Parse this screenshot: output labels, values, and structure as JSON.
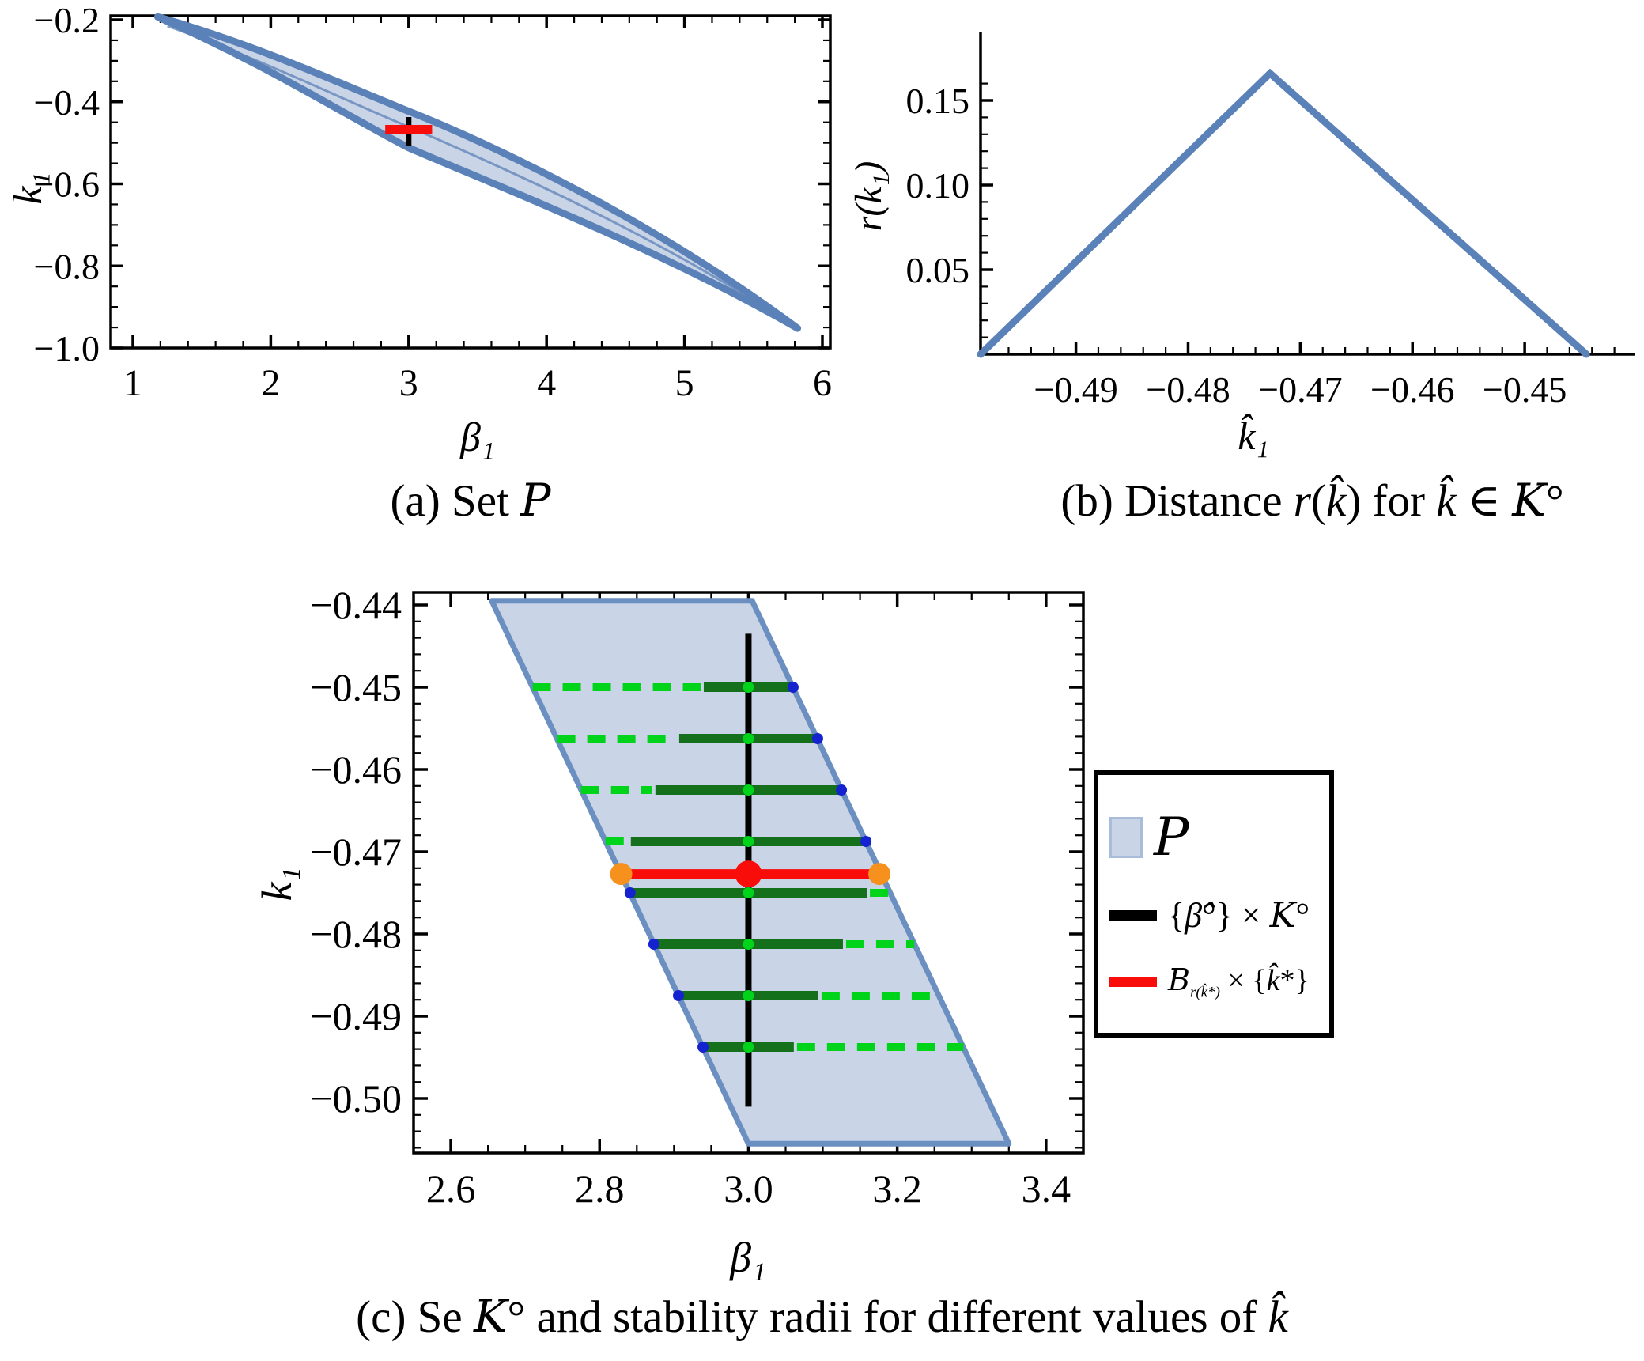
{
  "figure": {
    "captions": {
      "a": [
        {
          "t": "(a) Set ",
          "c": "rm"
        },
        {
          "t": "P",
          "c": "scr"
        }
      ],
      "b": [
        {
          "t": "(b) Distance ",
          "c": "rm"
        },
        {
          "t": "r",
          "c": "it"
        },
        {
          "t": "(",
          "c": "rm"
        },
        {
          "t": "k̂",
          "c": "it"
        },
        {
          "t": ") for ",
          "c": "rm"
        },
        {
          "t": "k̂",
          "c": "it"
        },
        {
          "t": " ∈ ",
          "c": "rm"
        },
        {
          "t": "K",
          "c": "scr"
        },
        {
          "t": "°",
          "c": "rm"
        }
      ],
      "c": [
        {
          "t": "(c) Se ",
          "c": "rm"
        },
        {
          "t": "K",
          "c": "scr"
        },
        {
          "t": "° and stability radii for different values of ",
          "c": "rm"
        },
        {
          "t": "k̂",
          "c": "it"
        }
      ]
    },
    "legend": {
      "items": [
        {
          "name": "set-P",
          "swatch": "area",
          "label": [
            {
              "t": "P",
              "c": "scr"
            }
          ]
        },
        {
          "name": "beta-hat-cross-K",
          "swatch": "black-line",
          "label": [
            {
              "t": "{",
              "c": "rm"
            },
            {
              "t": "β̂",
              "c": "it"
            },
            {
              "t": "°",
              "c": "rm"
            },
            {
              "t": "} × ",
              "c": "rm"
            },
            {
              "t": "K",
              "c": "scr"
            },
            {
              "t": "°",
              "c": "rm"
            }
          ]
        },
        {
          "name": "ball-cross-kstar",
          "swatch": "red-line",
          "label": [
            {
              "t": "B",
              "c": "scr"
            },
            {
              "t": "r(k̂*)",
              "c": "sub"
            },
            {
              "t": " × {",
              "c": "rm"
            },
            {
              "t": "k̂",
              "c": "it"
            },
            {
              "t": "*}",
              "c": "rm"
            }
          ]
        }
      ]
    },
    "colors": {
      "region_fill": "#c9d4e6",
      "region_stroke": "#5b82b8",
      "parallelogram_stroke": "#6b8fc0",
      "red": "#f90d0b",
      "orange": "#f6911e",
      "dark_green": "#14701a",
      "bright_green": "#00d41a",
      "blue_dot": "#1522cf",
      "black": "#000000"
    }
  },
  "chart_data": [
    {
      "id": "a",
      "type": "area",
      "title": "(a) Set P",
      "xlabel": "β₁",
      "ylabel": "k₁",
      "xlim": [
        0.85,
        6.05
      ],
      "ylim": [
        -1.0,
        -0.19
      ],
      "x_ticks": {
        "major": [
          1,
          2,
          3,
          4,
          5,
          6
        ],
        "labels": [
          "1",
          "2",
          "3",
          "4",
          "5",
          "6"
        ],
        "minor_step": 0.2
      },
      "y_ticks": {
        "major": [
          -0.2,
          -0.4,
          -0.6,
          -0.8,
          -1.0
        ],
        "labels": [
          "−0.2",
          "−0.4",
          "−0.6",
          "−0.8",
          "−1.0"
        ],
        "minor_step": 0.05
      },
      "region_P": {
        "upper": [
          [
            1.18,
            -0.193
          ],
          [
            1.9,
            -0.262
          ],
          [
            2.45,
            -0.348
          ],
          [
            3.0,
            -0.423
          ],
          [
            3.6,
            -0.503
          ],
          [
            4.75,
            -0.685
          ],
          [
            5.82,
            -0.952
          ]
        ],
        "lower": [
          [
            1.18,
            -0.193
          ],
          [
            2.0,
            -0.315
          ],
          [
            2.5,
            -0.425
          ],
          [
            3.0,
            -0.512
          ],
          [
            3.52,
            -0.588
          ],
          [
            4.8,
            -0.755
          ],
          [
            5.82,
            -0.952
          ]
        ],
        "inner_line": [
          [
            1.25,
            -0.215
          ],
          [
            2.0,
            -0.305
          ],
          [
            2.5,
            -0.392
          ],
          [
            3.05,
            -0.468
          ],
          [
            3.6,
            -0.548
          ],
          [
            4.8,
            -0.725
          ],
          [
            5.75,
            -0.938
          ]
        ]
      },
      "black_segment": {
        "beta": 3.0,
        "k_range": [
          -0.437,
          -0.508
        ]
      },
      "red_segment": {
        "k": -0.468,
        "beta_range": [
          2.83,
          3.17
        ]
      }
    },
    {
      "id": "b",
      "type": "line",
      "title": "(b) Distance r(k̂) for k̂ ∈ K°",
      "xlabel": "k̂₁",
      "ylabel": "r(k̂₁)",
      "xlim": [
        -0.4985,
        -0.44
      ],
      "ylim": [
        0,
        0.175
      ],
      "x_ticks": {
        "major": [
          -0.49,
          -0.48,
          -0.47,
          -0.46,
          -0.45
        ],
        "labels": [
          "−0.49",
          "−0.48",
          "−0.47",
          "−0.46",
          "−0.45"
        ],
        "minor_step": 0.002
      },
      "y_ticks": {
        "major": [
          0.05,
          0.1,
          0.15
        ],
        "labels": [
          "0.05",
          "0.10",
          "0.15"
        ],
        "minor_step": 0.01
      },
      "line": {
        "x": [
          -0.4985,
          -0.4727,
          -0.4445
        ],
        "y": [
          0,
          0.166,
          0
        ]
      },
      "peak": {
        "k": -0.4727,
        "r": 0.166
      }
    },
    {
      "id": "c",
      "type": "area",
      "title": "(c) Se K° and stability radii for different values of k̂",
      "xlabel": "β₁",
      "ylabel": "k₁",
      "xlim": [
        2.55,
        3.45
      ],
      "ylim": [
        -0.5066,
        -0.4385
      ],
      "x_ticks": {
        "major": [
          2.6,
          2.8,
          3.0,
          3.2,
          3.4
        ],
        "labels": [
          "2.6",
          "2.8",
          "3.0",
          "3.2",
          "3.4"
        ],
        "minor_step": 0.05
      },
      "y_ticks": {
        "major": [
          -0.44,
          -0.45,
          -0.46,
          -0.47,
          -0.48,
          -0.49,
          -0.5
        ],
        "labels": [
          "−0.44",
          "−0.45",
          "−0.46",
          "−0.47",
          "−0.48",
          "−0.49",
          "−0.50"
        ],
        "minor_step": 0.002
      },
      "parallelogram": [
        [
          2.655,
          -0.4395
        ],
        [
          3.005,
          -0.4395
        ],
        [
          3.35,
          -0.5055
        ],
        [
          3.0,
          -0.5055
        ]
      ],
      "black_line": {
        "beta": 3.0,
        "k_range": [
          -0.501,
          -0.4435
        ]
      },
      "rows": [
        {
          "k": -0.45,
          "section": [
            2.71,
            3.06
          ],
          "ball": [
            2.94,
            3.06
          ]
        },
        {
          "k": -0.45625,
          "section": [
            2.743,
            3.093
          ],
          "ball": [
            2.907,
            3.093
          ]
        },
        {
          "k": -0.4625,
          "section": [
            2.775,
            3.125
          ],
          "ball": [
            2.875,
            3.125
          ]
        },
        {
          "k": -0.46875,
          "section": [
            2.808,
            3.158
          ],
          "ball": [
            2.842,
            3.158
          ]
        },
        {
          "k": -0.475,
          "section": [
            2.841,
            3.191
          ],
          "ball": [
            2.841,
            3.159
          ]
        },
        {
          "k": -0.48125,
          "section": [
            2.873,
            3.223
          ],
          "ball": [
            2.873,
            3.127
          ]
        },
        {
          "k": -0.4875,
          "section": [
            2.906,
            3.256
          ],
          "ball": [
            2.906,
            3.094
          ]
        },
        {
          "k": -0.49375,
          "section": [
            2.939,
            3.289
          ],
          "ball": [
            2.939,
            3.061
          ]
        }
      ],
      "red_row": {
        "k": -0.4727,
        "ball": [
          2.829,
          3.176
        ],
        "center_beta": 3.0
      }
    }
  ]
}
